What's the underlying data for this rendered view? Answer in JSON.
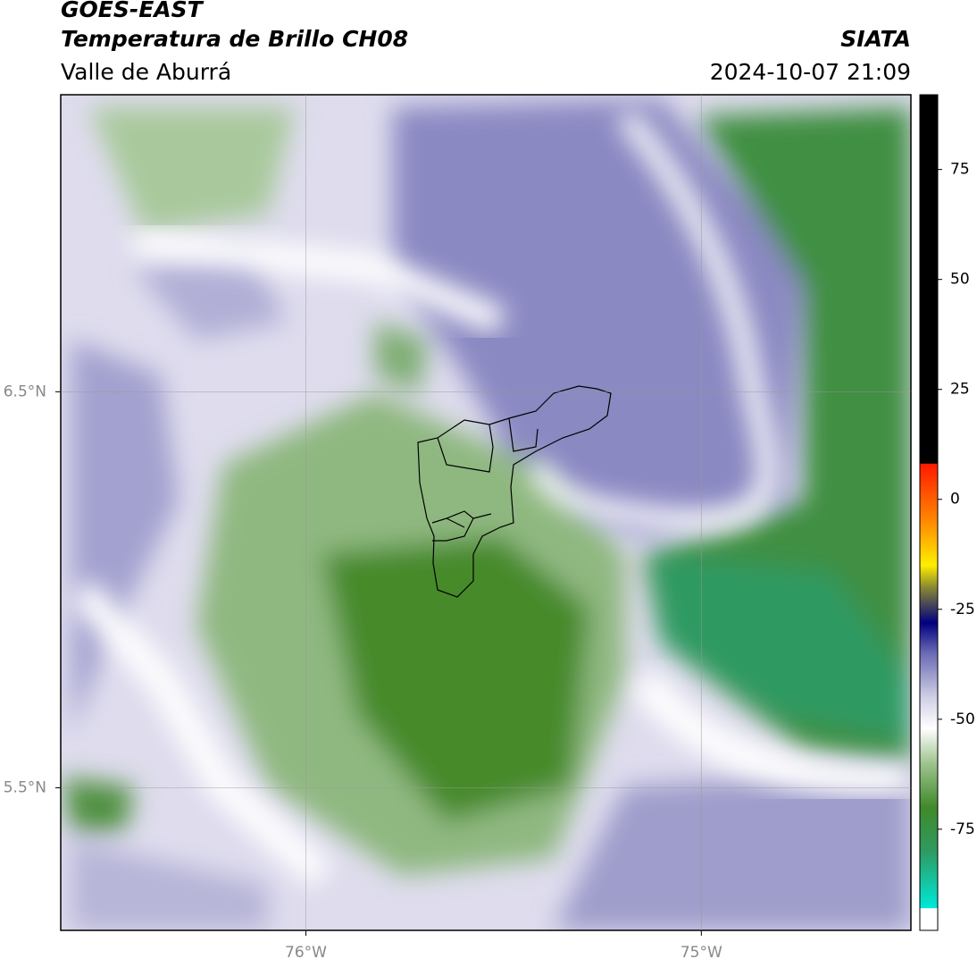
{
  "header": {
    "title": "GOES-EAST",
    "subtitle": "Temperatura de Brillo CH08",
    "region": "Valle de Aburrá",
    "source": "SIATA",
    "datetime": "2024-10-07 21:09"
  },
  "map": {
    "type": "contour-map",
    "xlim": [
      -76.62,
      -74.47
    ],
    "ylim": [
      5.14,
      7.25
    ],
    "xticks": [
      {
        "value": -76,
        "label": "76°W"
      },
      {
        "value": -75,
        "label": "75°W"
      }
    ],
    "yticks": [
      {
        "value": 6.5,
        "label": "6.5°N"
      },
      {
        "value": 5.5,
        "label": "5.5°N"
      }
    ],
    "grid": true
  },
  "colorbar": {
    "lim": [
      -98,
      92
    ],
    "ticks": [
      75,
      50,
      25,
      0,
      -25,
      -50,
      -75
    ]
  }
}
